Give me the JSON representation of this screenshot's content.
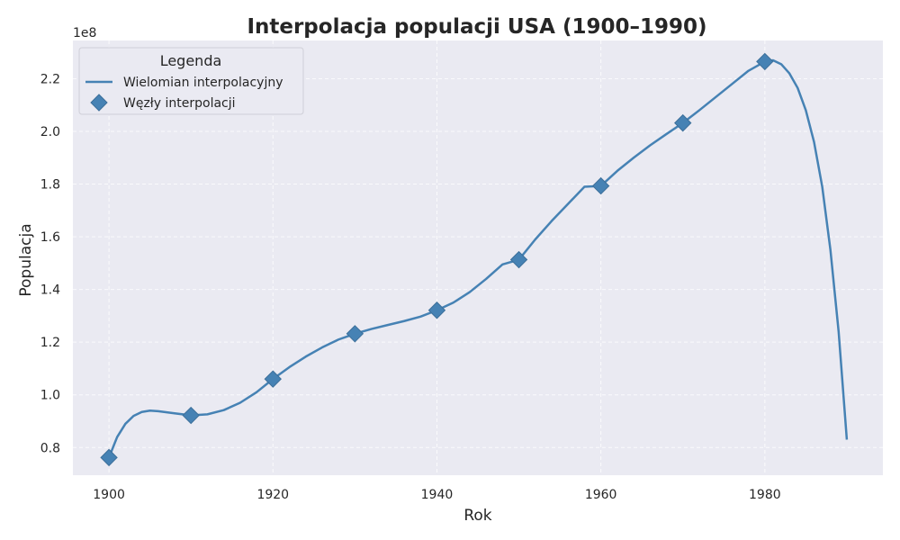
{
  "chart_data": {
    "type": "line",
    "title": "Interpolacja populacji USA (1900–1990)",
    "xlabel": "Rok",
    "ylabel": "Populacja",
    "y_offset_label": "1e8",
    "xlim": [
      1895.6,
      1994.4
    ],
    "ylim": [
      0.695,
      2.345
    ],
    "y_scale": 100000000,
    "x_ticks": [
      1900,
      1920,
      1940,
      1960,
      1980
    ],
    "y_ticks": [
      0.8,
      1.0,
      1.2,
      1.4,
      1.6,
      1.8,
      2.0,
      2.2
    ],
    "y_tick_labels": [
      "0.8",
      "1.0",
      "1.2",
      "1.4",
      "1.6",
      "1.8",
      "2.0",
      "2.2"
    ],
    "grid": true,
    "legend": {
      "title": "Legenda",
      "placement": "top-left",
      "entries": [
        "Wielomian interpolacyjny",
        "Węzły interpolacji"
      ]
    },
    "series": [
      {
        "name": "Wielomian interpolacyjny",
        "style": "line",
        "color": "#4682b4",
        "x": [
          1900,
          1901,
          1902,
          1903,
          1904,
          1905,
          1906,
          1908,
          1910,
          1912,
          1914,
          1916,
          1918,
          1920,
          1922,
          1924,
          1926,
          1928,
          1930,
          1932,
          1934,
          1936,
          1938,
          1940,
          1942,
          1944,
          1946,
          1948,
          1950,
          1952,
          1954,
          1956,
          1958,
          1960,
          1962,
          1964,
          1966,
          1968,
          1970,
          1972,
          1974,
          1976,
          1978,
          1980,
          1981,
          1982,
          1983,
          1984,
          1985,
          1986,
          1987,
          1988,
          1989,
          1990
        ],
        "y": [
          0.762,
          0.84,
          0.89,
          0.92,
          0.935,
          0.94,
          0.938,
          0.93,
          0.922,
          0.926,
          0.942,
          0.97,
          1.01,
          1.06,
          1.105,
          1.145,
          1.18,
          1.21,
          1.232,
          1.25,
          1.265,
          1.28,
          1.297,
          1.321,
          1.35,
          1.39,
          1.44,
          1.495,
          1.513,
          1.59,
          1.66,
          1.725,
          1.79,
          1.793,
          1.85,
          1.9,
          1.947,
          1.99,
          2.032,
          2.08,
          2.13,
          2.18,
          2.23,
          2.265,
          2.27,
          2.255,
          2.22,
          2.165,
          2.08,
          1.96,
          1.79,
          1.55,
          1.24,
          0.83
        ]
      },
      {
        "name": "Węzły interpolacji",
        "style": "markers",
        "marker": "diamond",
        "color": "#4682b4",
        "x": [
          1900,
          1910,
          1920,
          1930,
          1940,
          1950,
          1960,
          1970,
          1980
        ],
        "y": [
          0.762,
          0.922,
          1.06,
          1.232,
          1.321,
          1.513,
          1.793,
          2.032,
          2.265
        ]
      }
    ]
  }
}
